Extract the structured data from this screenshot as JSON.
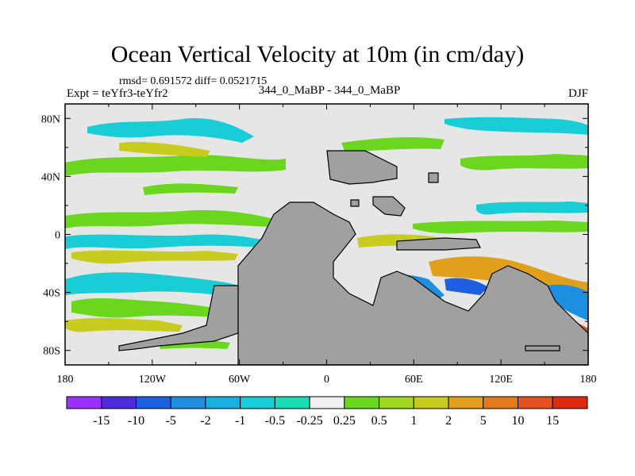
{
  "title": "Ocean Vertical Velocity at 10m (in cm/day)",
  "stats": "rmsd= 0.691572 diff= 0.0521715",
  "experiment": "Expt = teYfr3-teYfr2",
  "period": "344_0_MaBP - 344_0_MaBP",
  "season": "DJF",
  "map": {
    "x_ticks": [
      "180",
      "120W",
      "60W",
      "0",
      "60E",
      "120E",
      "180"
    ],
    "y_ticks": [
      "80N",
      "40N",
      "0",
      "40S",
      "80S"
    ],
    "x_tick_degrees": [
      -180,
      -120,
      -60,
      0,
      60,
      120,
      180
    ],
    "y_tick_degrees": [
      80,
      40,
      0,
      -40,
      -80
    ],
    "lon_range": [
      -180,
      180
    ],
    "lat_range": [
      -90,
      90
    ],
    "land_color": "#a0a0a0",
    "background_color": "#e6e6e6"
  },
  "colorbar": {
    "labels": [
      "-15",
      "-10",
      "-5",
      "-2",
      "-1",
      "-0.5",
      "-0.25",
      "0.25",
      "0.5",
      "1",
      "2",
      "5",
      "10",
      "15"
    ],
    "colors": [
      "#9b30ff",
      "#4b2bdc",
      "#1d5fe0",
      "#1e8ee0",
      "#19b0e0",
      "#19cdd7",
      "#19dcb4",
      "#f0f0f0",
      "#6ad61e",
      "#9fd61e",
      "#c8cc1e",
      "#e0a01e",
      "#e47a1e",
      "#e4501e",
      "#e02a10"
    ]
  }
}
